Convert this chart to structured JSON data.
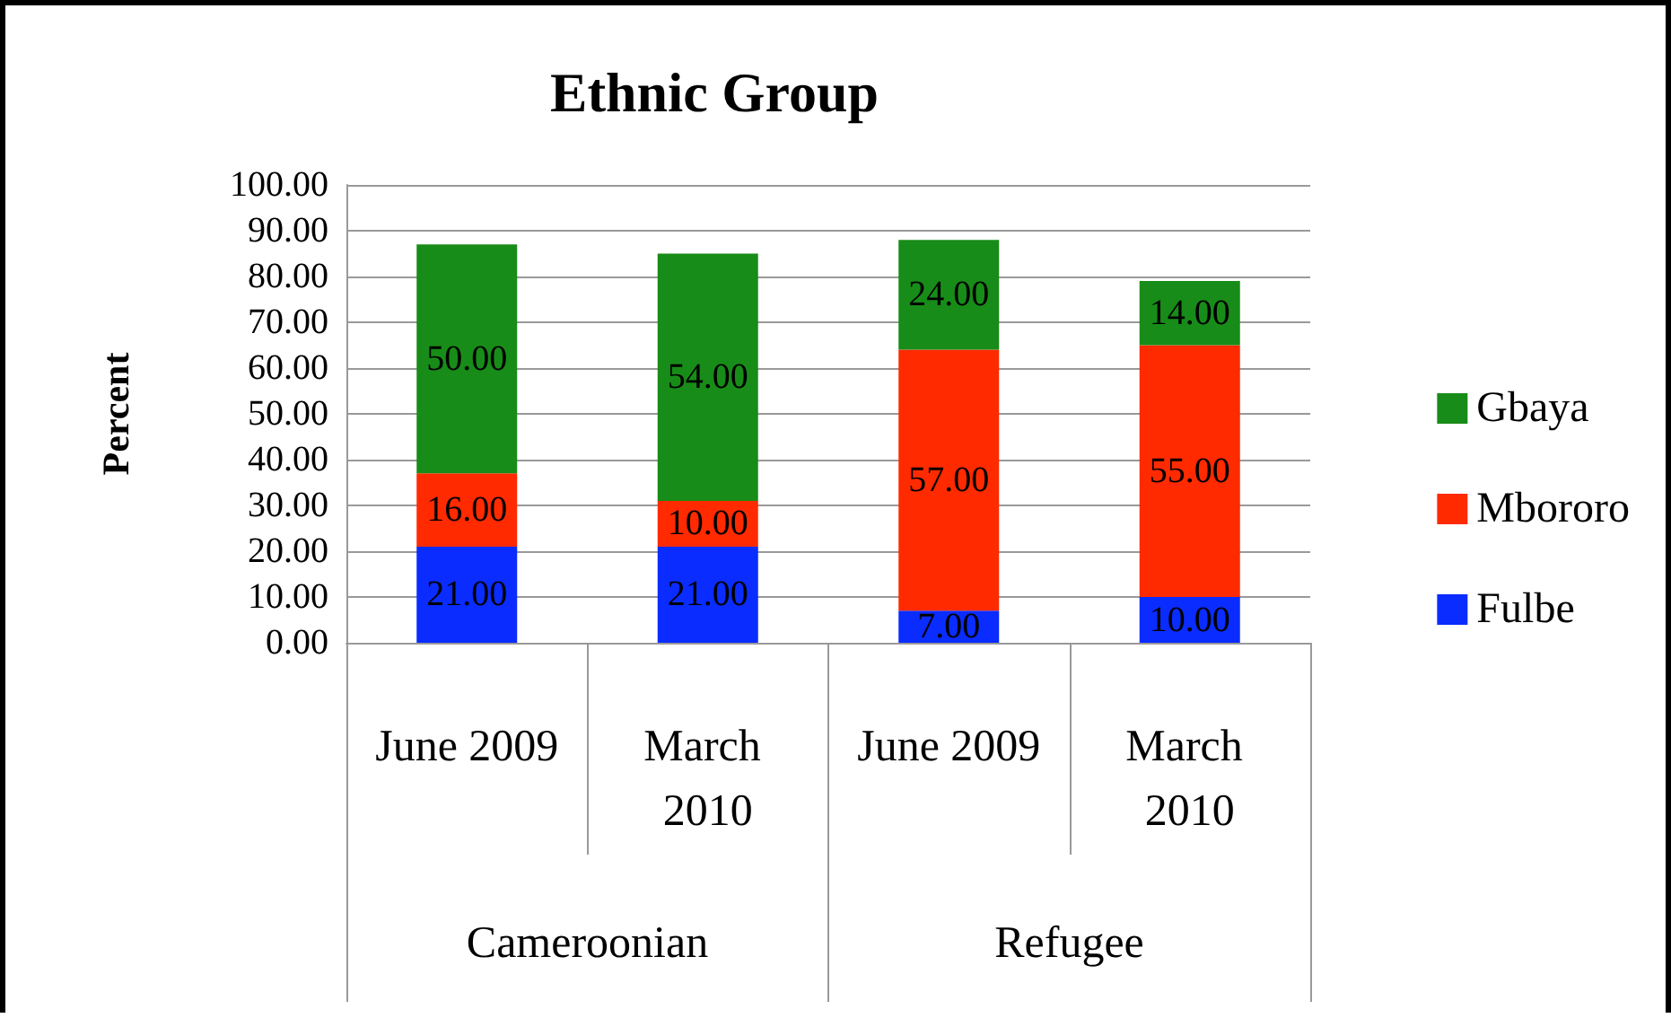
{
  "chart_data": {
    "type": "bar",
    "title": "Ethnic Group",
    "ylabel": "Percent",
    "categories": [
      "June 2009",
      "March 2010",
      "June 2009",
      "March 2010"
    ],
    "annotations": [
      "Cameroonian",
      "Refugee"
    ],
    "stacked": true,
    "series": [
      {
        "name": "Fulbe",
        "color": "#0a2cff",
        "values": [
          21,
          21,
          7,
          10
        ],
        "value_labels": [
          "21.00",
          "21.00",
          "7.00",
          "10.00"
        ]
      },
      {
        "name": "Mbororo",
        "color": "#ff2a00",
        "values": [
          16,
          10,
          57,
          55
        ],
        "value_labels": [
          "16.00",
          "10.00",
          "57.00",
          "55.00"
        ]
      },
      {
        "name": "Gbaya",
        "color": "#188c18",
        "values": [
          50,
          54,
          24,
          14
        ],
        "value_labels": [
          "50.00",
          "54.00",
          "24.00",
          "14.00"
        ]
      }
    ],
    "ylim": [
      0,
      100
    ],
    "yticks": [
      {
        "value": 0,
        "label": "0.00"
      },
      {
        "value": 10,
        "label": "10.00"
      },
      {
        "value": 20,
        "label": "20.00"
      },
      {
        "value": 30,
        "label": "30.00"
      },
      {
        "value": 40,
        "label": "40.00"
      },
      {
        "value": 50,
        "label": "50.00"
      },
      {
        "value": 60,
        "label": "60.00"
      },
      {
        "value": 70,
        "label": "70.00"
      },
      {
        "value": 80,
        "label": "80.00"
      },
      {
        "value": 90,
        "label": "90.00"
      },
      {
        "value": 100,
        "label": "100.00"
      }
    ],
    "grid": "y",
    "legend": "right"
  }
}
